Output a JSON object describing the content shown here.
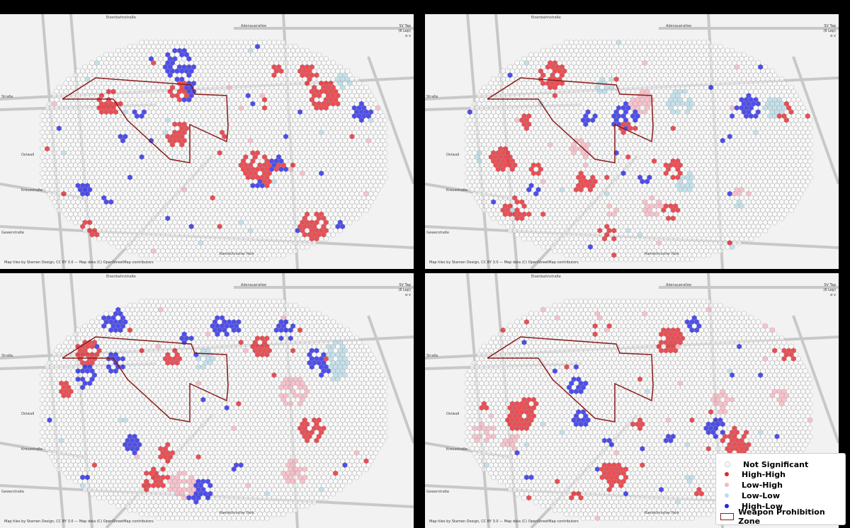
{
  "panels": [
    {
      "id": "p1",
      "title": "",
      "street_labels": [
        "Adenauerallee",
        "Straße",
        "Ostwall",
        "Ramdohrscher Park",
        "Kreuzstraße",
        "Gewerstraße",
        "Eisenbahnstraße"
      ]
    },
    {
      "id": "p2",
      "title": "",
      "street_labels": [
        "Adenauerallee",
        "Straße",
        "Ostwall",
        "Ramdohrscher Park",
        "Kreuzstraße",
        "Gewerstraße",
        "Eisenbahnstraße"
      ]
    },
    {
      "id": "p3",
      "title": "",
      "street_labels": [
        "Adenauerallee",
        "Straße",
        "Ostwall",
        "Ramdohrscher Park",
        "Kreuzstraße",
        "Gewerstraße",
        "Eisenbahnstraße"
      ]
    },
    {
      "id": "p4",
      "title": "",
      "street_labels": [
        "Adenauerallee",
        "Straße",
        "Ostwall",
        "Ramdohrscher Park",
        "Kreuzstraße",
        "Gewerstraße",
        "Eisenbahnstraße"
      ]
    }
  ],
  "map_attribution": "Map tiles by Stamen Design, CC BY 3.0 — Map data (C) OpenStreetMap contributors",
  "corner_note": "SV Tap\n(6 Lep)\nα v",
  "legend": {
    "items": [
      {
        "label": "Not Significant",
        "color": "#ffffff"
      },
      {
        "label": "High-High",
        "color": "#e8242c"
      },
      {
        "label": "Low-High",
        "color": "#f7b6c2"
      },
      {
        "label": "Low-Low",
        "color": "#b9dce8"
      },
      {
        "label": "High-Low",
        "color": "#2424e8"
      }
    ],
    "zone_label": "Weapon Prohibition Zone",
    "zone_color": "#8b1a1a"
  }
}
